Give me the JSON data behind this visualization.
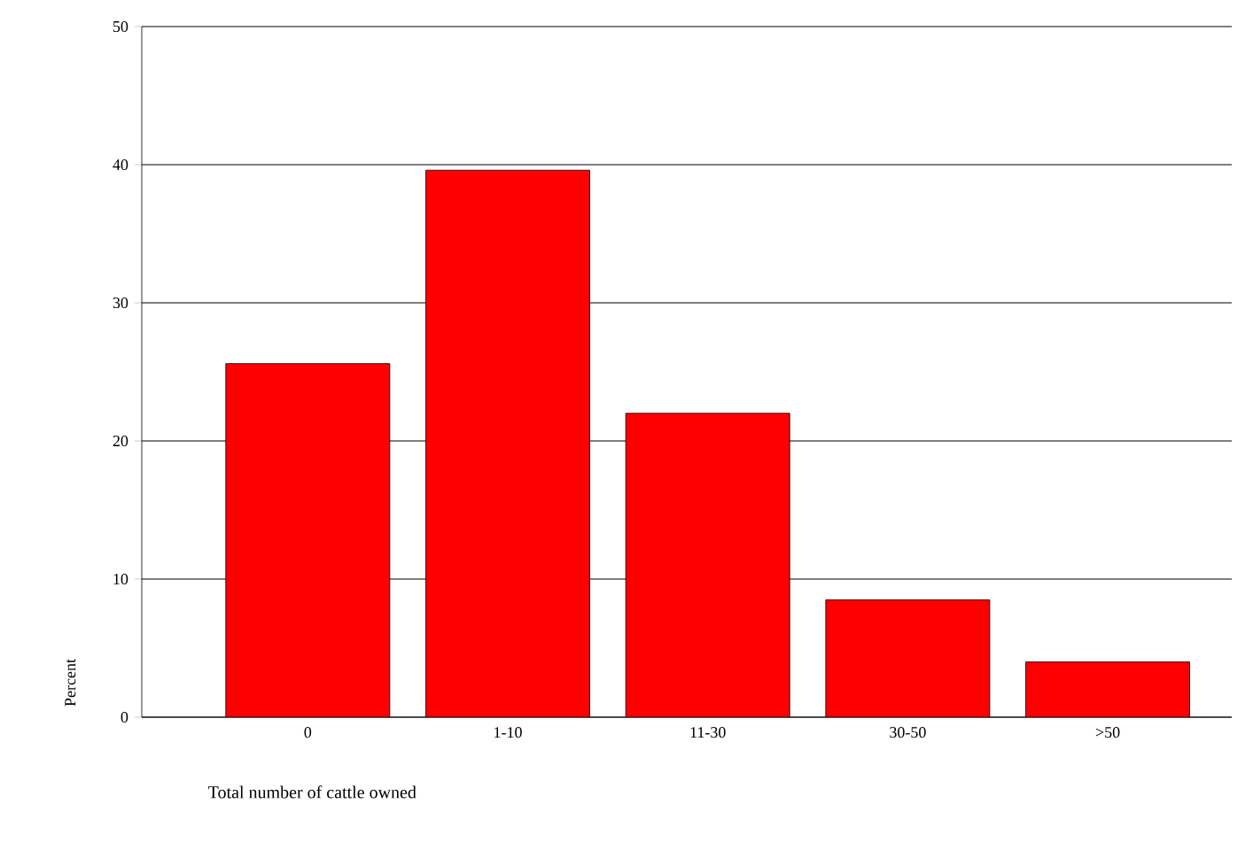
{
  "chart_data": {
    "type": "bar",
    "xlabel": "Total number of cattle owned",
    "ylabel": "Percent",
    "categories": [
      "0",
      "1-10",
      "11-30",
      "30-50",
      ">50"
    ],
    "values": [
      25.6,
      39.6,
      22.0,
      8.5,
      4.0
    ],
    "color": "#ff0000",
    "ylim": [
      0,
      50
    ],
    "yticks": [
      0,
      10,
      20,
      30,
      40,
      50
    ],
    "grid": "y"
  }
}
